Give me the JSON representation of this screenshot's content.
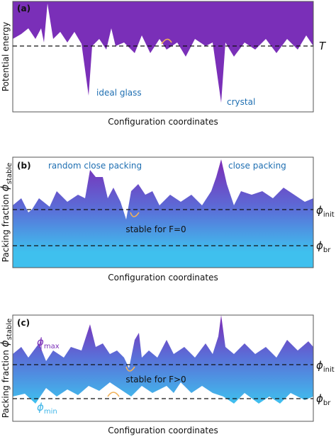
{
  "panels": [
    {
      "label": "(a)",
      "y_axis_label": "Potential energy",
      "x_axis_label": "Configuration coordinates",
      "threshold_label": "T",
      "annotations": [
        "ideal glass",
        "crystal"
      ]
    },
    {
      "label": "(b)",
      "y_axis_label": "Packing fraction",
      "y_axis_symbol": "ϕ",
      "y_axis_subscript": "stable",
      "x_axis_label": "Configuration coordinates",
      "annotations": [
        "random close packing",
        "close packing",
        "stable for F=0"
      ],
      "levels": [
        {
          "symbol": "ϕ",
          "subscript": "init"
        },
        {
          "symbol": "ϕ",
          "subscript": "br"
        }
      ]
    },
    {
      "label": "(c)",
      "y_axis_label": "Packing fraction",
      "y_axis_symbol": "ϕ",
      "y_axis_subscript": "stable",
      "x_axis_label": "Configuration coordinates",
      "annotations": [
        "stable for F>0"
      ],
      "bounds": [
        {
          "symbol": "ϕ",
          "subscript": "max"
        },
        {
          "symbol": "ϕ",
          "subscript": "min"
        }
      ],
      "levels": [
        {
          "symbol": "ϕ",
          "subscript": "init"
        },
        {
          "symbol": "ϕ",
          "subscript": "br"
        }
      ]
    }
  ]
}
